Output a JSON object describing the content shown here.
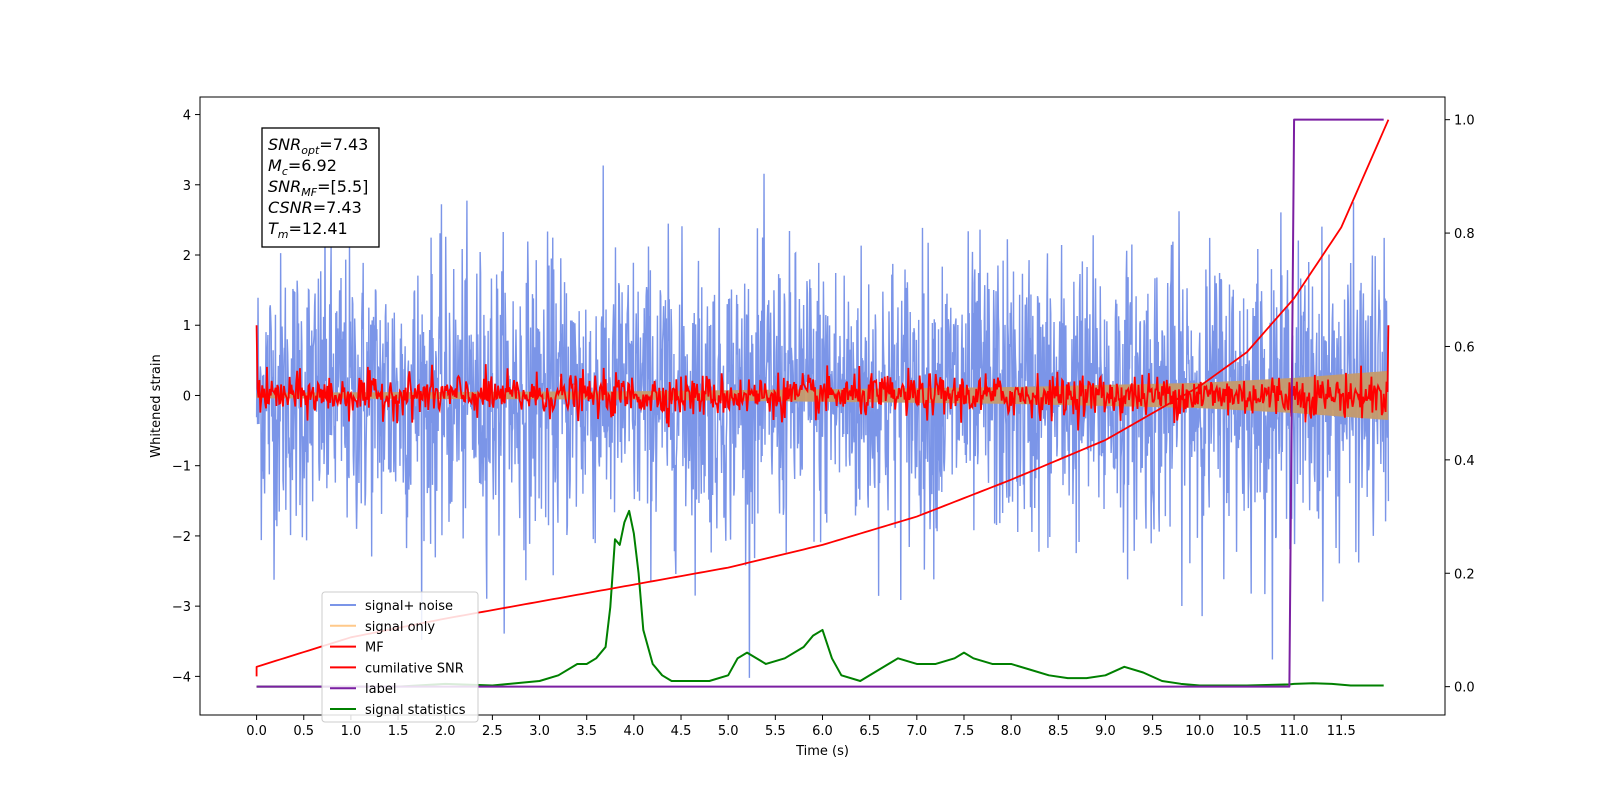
{
  "chart_data": {
    "type": "line",
    "title": "",
    "xlabel": "Time (s)",
    "ylabel": "Whitened strain",
    "xlim": [
      -0.6,
      12.6
    ],
    "ylim": [
      -4.55,
      4.25
    ],
    "y2lim": [
      -0.05,
      1.04
    ],
    "xticks": [
      "0.0",
      "0.5",
      "1.0",
      "1.5",
      "2.0",
      "2.5",
      "3.0",
      "3.5",
      "4.0",
      "4.5",
      "5.0",
      "5.5",
      "6.0",
      "6.5",
      "7.0",
      "7.5",
      "8.0",
      "8.5",
      "9.0",
      "9.5",
      "10.0",
      "10.5",
      "11.0",
      "11.5"
    ],
    "yticks": [
      "4",
      "3",
      "2",
      "1",
      "0",
      "−1",
      "−2",
      "−3",
      "−4"
    ],
    "y2ticks": [
      "1.0",
      "0.8",
      "0.6",
      "0.4",
      "0.2",
      "0.0"
    ],
    "grid": false,
    "legend_position": "lower-left",
    "legend": [
      "signal+ noise",
      "signal only",
      "MF",
      "cumilative SNR",
      "label",
      "signal statistics"
    ],
    "annotation": {
      "lines": [
        {
          "var": "SNR",
          "sub": "opt",
          "value": "=7.43"
        },
        {
          "var": "M",
          "sub": "c",
          "value": "=6.92"
        },
        {
          "var": "SNR",
          "sub": "MF",
          "value": "=[5.5]"
        },
        {
          "var": "CSNR",
          "sub": "",
          "value": "=7.43"
        },
        {
          "var": "T",
          "sub": "m",
          "value": "=12.41"
        }
      ]
    },
    "series": [
      {
        "name": "signal+ noise",
        "color": "#7b95e8",
        "axis": "left",
        "style": "noise",
        "x_range": [
          0,
          12
        ],
        "std": 1.0,
        "n_points": 2400
      },
      {
        "name": "signal only",
        "color": "#ffc98a",
        "axis": "left",
        "style": "envelope",
        "x": [
          0,
          4,
          8,
          10,
          11,
          12
        ],
        "amplitude": [
          0.04,
          0.06,
          0.12,
          0.18,
          0.25,
          0.35
        ]
      },
      {
        "name": "MF",
        "color": "#ff0000",
        "axis": "left",
        "style": "noise-small",
        "x_range": [
          0,
          12
        ],
        "std": 0.15,
        "start": 1.0,
        "end": 1.0
      },
      {
        "name": "cumilative SNR",
        "color": "#ff0000",
        "axis": "right",
        "x": [
          0,
          1,
          2,
          3,
          4,
          5,
          6,
          7,
          8,
          9,
          10,
          10.5,
          11,
          11.5,
          12
        ],
        "values": [
          0.035,
          0.087,
          0.12,
          0.15,
          0.18,
          0.21,
          0.25,
          0.3,
          0.365,
          0.435,
          0.53,
          0.59,
          0.685,
          0.81,
          1.0
        ]
      },
      {
        "name": "label",
        "color": "#7b1fa2",
        "axis": "right",
        "x": [
          0,
          10.95,
          11.0,
          11.95
        ],
        "values": [
          0,
          0,
          1,
          1
        ]
      },
      {
        "name": "signal statistics",
        "color": "#008000",
        "axis": "right",
        "x": [
          0,
          0.5,
          1.0,
          1.5,
          2.0,
          2.5,
          3.0,
          3.2,
          3.4,
          3.5,
          3.6,
          3.7,
          3.75,
          3.8,
          3.85,
          3.9,
          3.95,
          4.0,
          4.05,
          4.1,
          4.2,
          4.3,
          4.4,
          4.5,
          4.8,
          5.0,
          5.1,
          5.2,
          5.4,
          5.6,
          5.8,
          5.9,
          6.0,
          6.1,
          6.2,
          6.4,
          6.6,
          6.8,
          7.0,
          7.2,
          7.4,
          7.5,
          7.6,
          7.8,
          8.0,
          8.2,
          8.4,
          8.6,
          8.8,
          9.0,
          9.2,
          9.4,
          9.6,
          9.8,
          10.0,
          10.5,
          10.95,
          11.0,
          11.2,
          11.4,
          11.6,
          11.95
        ],
        "values": [
          0.0,
          0.0,
          0.0,
          0.0,
          0.005,
          0.002,
          0.01,
          0.02,
          0.04,
          0.04,
          0.05,
          0.07,
          0.14,
          0.26,
          0.25,
          0.29,
          0.31,
          0.27,
          0.2,
          0.1,
          0.04,
          0.02,
          0.01,
          0.01,
          0.01,
          0.02,
          0.05,
          0.06,
          0.04,
          0.05,
          0.07,
          0.09,
          0.1,
          0.05,
          0.02,
          0.01,
          0.03,
          0.05,
          0.04,
          0.04,
          0.05,
          0.06,
          0.05,
          0.04,
          0.04,
          0.03,
          0.02,
          0.015,
          0.015,
          0.02,
          0.035,
          0.025,
          0.01,
          0.005,
          0.002,
          0.002,
          0.004,
          0.005,
          0.006,
          0.005,
          0.002,
          0.002
        ]
      }
    ]
  }
}
